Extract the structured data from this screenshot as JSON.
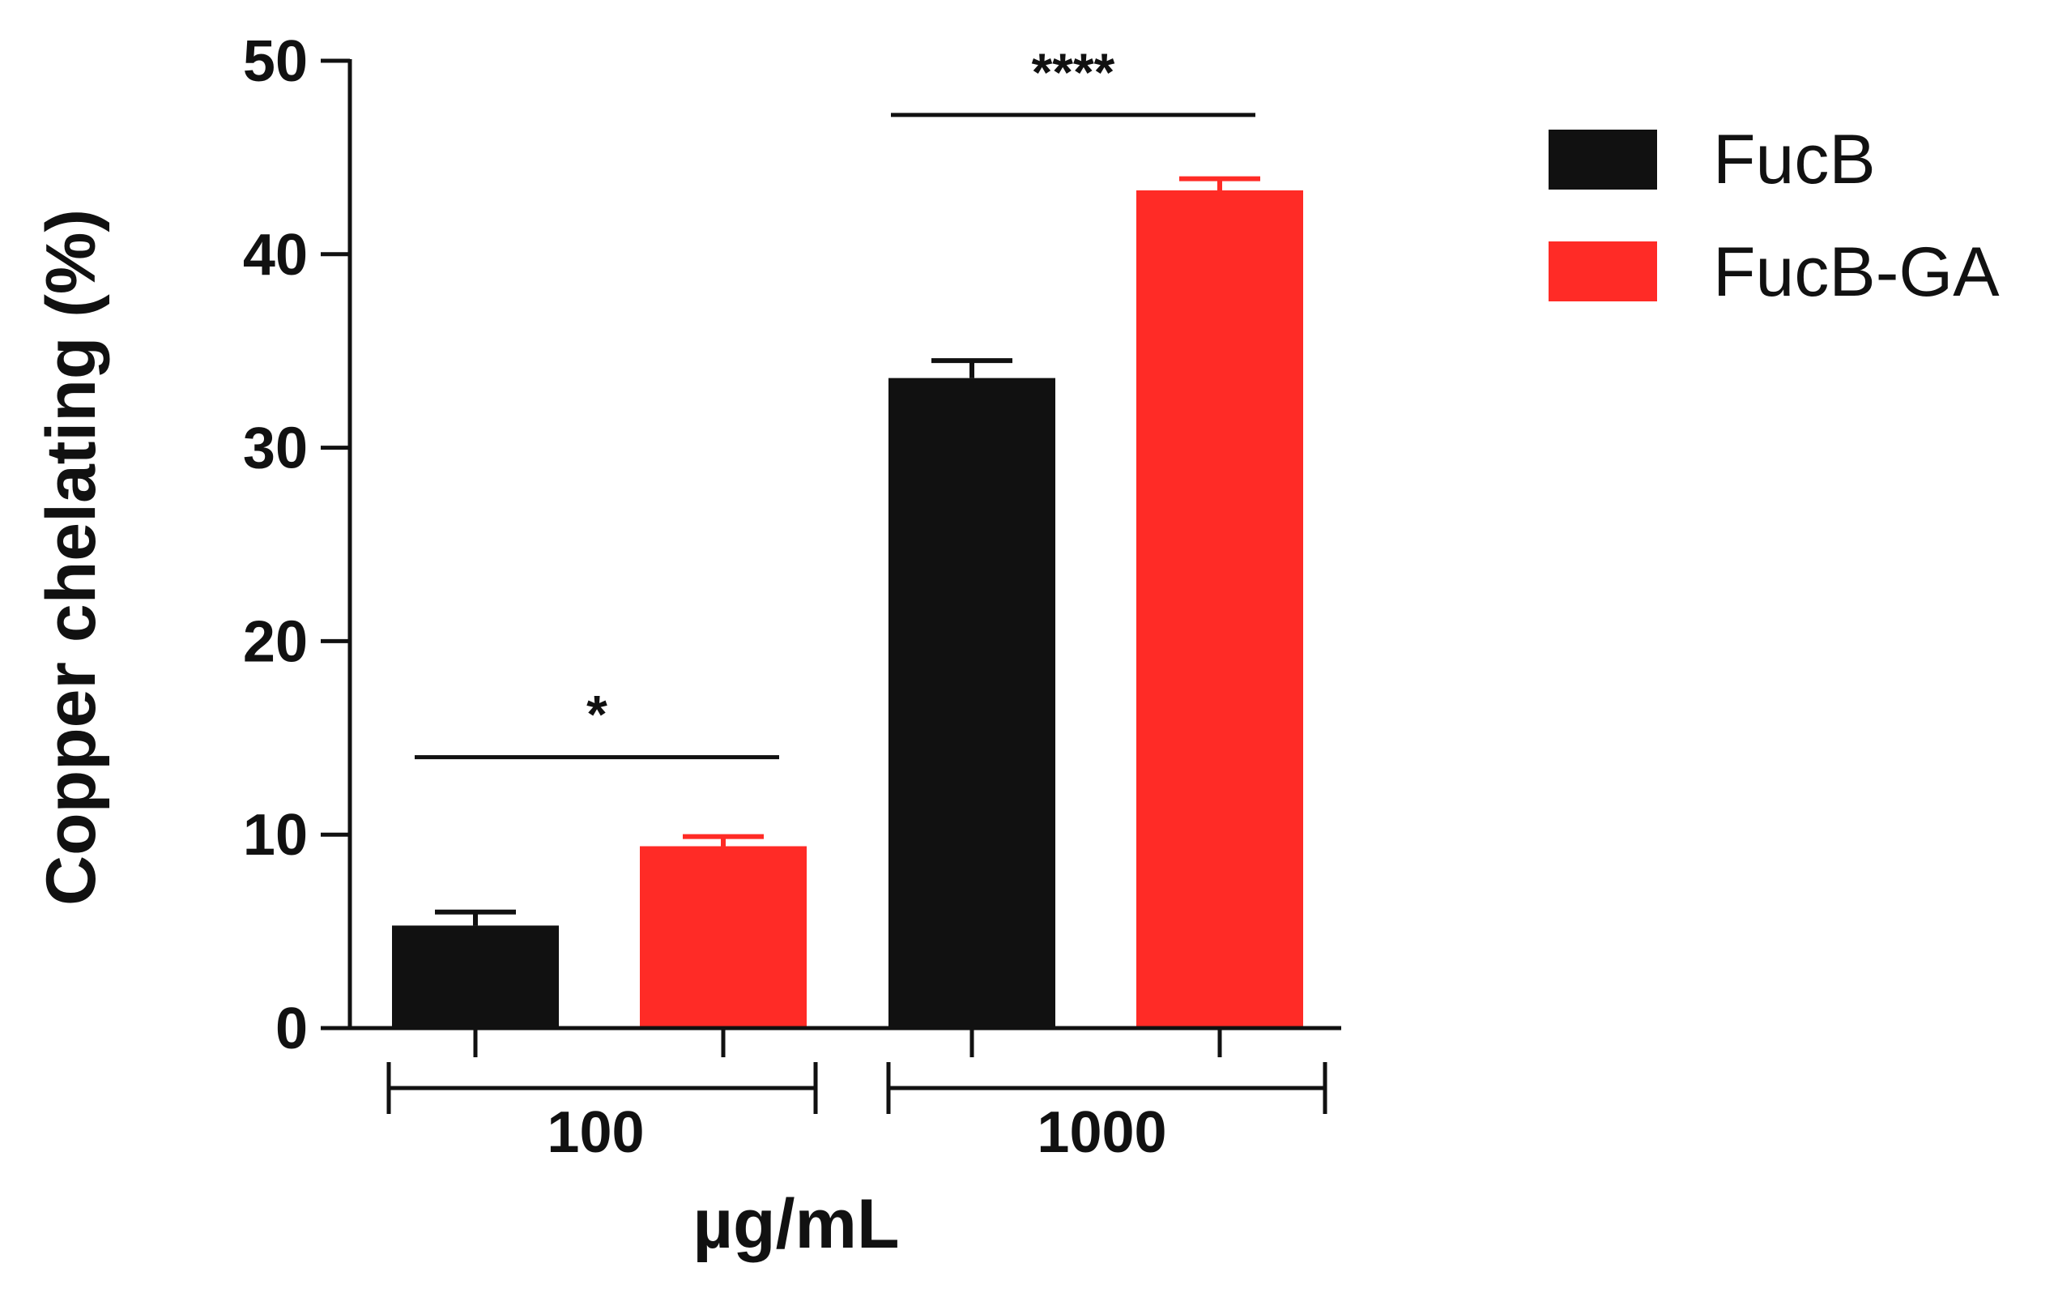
{
  "chart_data": {
    "type": "bar",
    "title": "",
    "ylabel": "Copper chelating (%)",
    "xlabel": "µg/mL",
    "ylim": [
      0,
      50
    ],
    "yticks": [
      "0",
      "10",
      "20",
      "30",
      "40",
      "50"
    ],
    "categories": [
      "100",
      "1000"
    ],
    "series": [
      {
        "name": "FucB",
        "color": "#111111",
        "values": [
          5.3,
          33.6
        ],
        "errors": [
          0.7,
          0.9
        ]
      },
      {
        "name": "FucB-GA",
        "color": "#ff2b26",
        "values": [
          9.4,
          43.3
        ],
        "errors": [
          0.5,
          0.6
        ]
      }
    ],
    "significance": [
      {
        "category": "100",
        "label": "*",
        "level": 14.0
      },
      {
        "category": "1000",
        "label": "****",
        "level": 47.2
      }
    ],
    "legend_position": "top-right",
    "grid": false
  }
}
